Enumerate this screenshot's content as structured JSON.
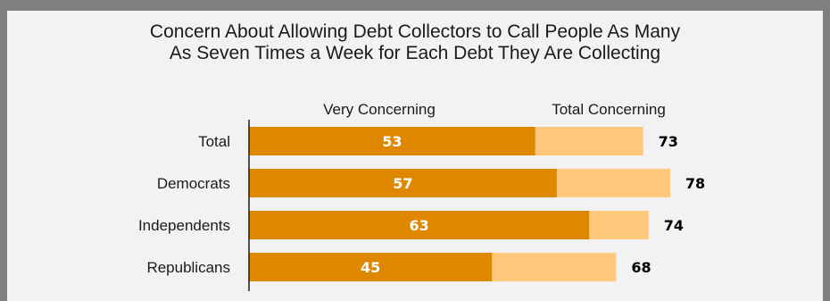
{
  "chart_data": {
    "type": "bar",
    "orientation": "horizontal",
    "stacked_overlay": true,
    "title_lines": [
      "Concern About Allowing Debt Collectors to Call People As Many",
      "As Seven Times a Week for Each Debt They Are Collecting"
    ],
    "categories": [
      "Total",
      "Democrats",
      "Independents",
      "Republicans"
    ],
    "series": [
      {
        "name": "Very Concerning",
        "values": [
          53,
          57,
          63,
          45
        ],
        "color": "#e08700"
      },
      {
        "name": "Total Concerning",
        "values": [
          73,
          78,
          74,
          68
        ],
        "color": "#ffc87a"
      }
    ],
    "legend_placement": "top",
    "grid": false,
    "xlim": [
      0,
      100
    ]
  }
}
